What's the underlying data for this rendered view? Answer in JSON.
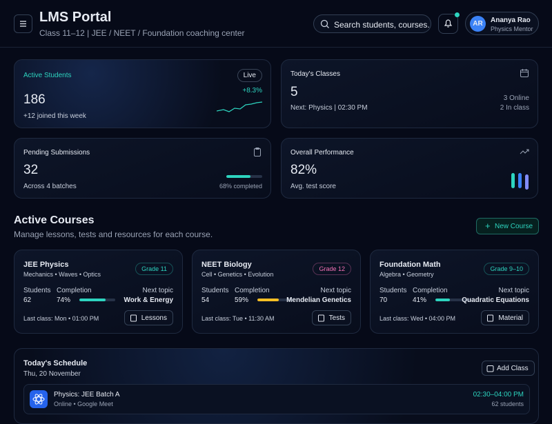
{
  "header": {
    "title": "LMS Portal",
    "subtitle": "Class 11–12 | JEE / NEET / Foundation coaching center",
    "search_placeholder": "Search students, courses.",
    "user": {
      "initials": "AR",
      "name": "Ananya Rao",
      "role": "Physics Mentor"
    }
  },
  "stats": [
    {
      "label": "Active Students",
      "badge": "Live",
      "value": "186",
      "note": "+12 joined this week",
      "trend": "+8.3%"
    },
    {
      "label": "Today's Classes",
      "value": "5",
      "note": "Next: Physics | 02:30 PM",
      "extra": [
        "3 Online",
        "2 In class"
      ]
    },
    {
      "label": "Pending Submissions",
      "value": "32",
      "note": "Across 4 batches",
      "progress": 68,
      "progress_label": "68% completed"
    },
    {
      "label": "Overall Performance",
      "value": "82%",
      "note": "Avg. test score"
    }
  ],
  "courses": {
    "title": "Active Courses",
    "subtitle": "Manage lessons, tests and resources for each course.",
    "button": "New Course",
    "labels": {
      "students": "Students",
      "completion": "Completion",
      "next_topic": "Next topic"
    },
    "items": [
      {
        "name": "JEE Physics",
        "topics": "Mechanics • Waves • Optics",
        "grade": "Grade 11",
        "students": "62",
        "completion": 74,
        "completion_label": "74%",
        "next_topic": "Work & Energy",
        "last_class": "Last class: Mon • 01:00 PM",
        "action": "Lessons"
      },
      {
        "name": "NEET Biology",
        "topics": "Cell • Genetics • Evolution",
        "grade": "Grade 12",
        "students": "54",
        "completion": 59,
        "completion_label": "59%",
        "next_topic": "Mendelian Genetics",
        "last_class": "Last class: Tue • 11:30 AM",
        "action": "Tests"
      },
      {
        "name": "Foundation Math",
        "topics": "Algebra • Geometry",
        "grade": "Grade 9–10",
        "students": "70",
        "completion": 41,
        "completion_label": "41%",
        "next_topic": "Quadratic Equations",
        "last_class": "Last class: Wed • 04:00 PM",
        "action": "Material"
      }
    ]
  },
  "schedule": {
    "title": "Today's Schedule",
    "date": "Thu, 20 November",
    "button": "Add Class",
    "items": [
      {
        "title": "Physics: JEE Batch A",
        "detail": "Online • Google Meet",
        "time": "02:30–04:00 PM",
        "students": "62 students"
      }
    ]
  }
}
